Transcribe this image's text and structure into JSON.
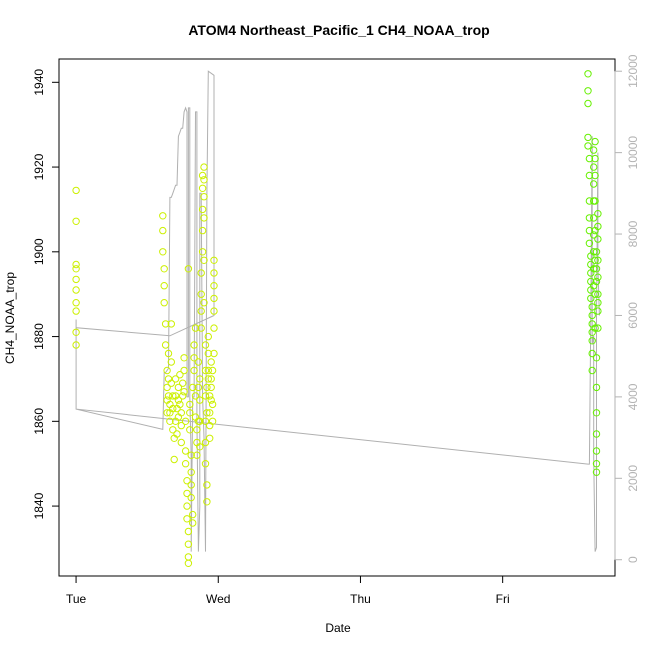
{
  "chart_data": {
    "type": "scatter",
    "title": "ATOM4 Northeast_Pacific_1 CH4_NOAA_trop",
    "xlabel": "Date",
    "ylabel": "CH4_NOAA_trop",
    "x_ticks": [
      "Tue",
      "Wed",
      "Thu",
      "Fri"
    ],
    "x_tick_values": [
      0,
      1,
      2,
      3
    ],
    "xlim": [
      -0.12,
      3.79
    ],
    "ylim": [
      1823.5,
      1945.5
    ],
    "y_ticks": [
      1840,
      1860,
      1880,
      1900,
      1920,
      1940
    ],
    "y2lim": [
      -400,
      12300
    ],
    "y2_ticks": [
      0,
      2000,
      4000,
      6000,
      8000,
      10000,
      12000
    ],
    "grid": false,
    "colors": {
      "ch4_early": "#ccf000",
      "ch4_late": "#66f000",
      "altitude_line": "#b0b0b0"
    },
    "series": [
      {
        "points": [
          [
            0.0,
            1914.5
          ],
          [
            0.0,
            1907.2
          ],
          [
            0.0,
            1897.0
          ],
          [
            0.0,
            1896.0
          ],
          [
            0.0,
            1893.5
          ],
          [
            0.0,
            1891.0
          ],
          [
            0.0,
            1888.0
          ],
          [
            0.0,
            1886.0
          ],
          [
            0.0,
            1881.0
          ],
          [
            0.0,
            1878.0
          ],
          [
            0.61,
            1908.5
          ],
          [
            0.61,
            1905.0
          ],
          [
            0.61,
            1900.0
          ],
          [
            0.62,
            1896.0
          ],
          [
            0.62,
            1892.0
          ],
          [
            0.62,
            1888.0
          ],
          [
            0.63,
            1883.0
          ],
          [
            0.63,
            1878.0
          ],
          [
            0.64,
            1872.0
          ],
          [
            0.64,
            1868.0
          ],
          [
            0.64,
            1865.0
          ],
          [
            0.64,
            1862.0
          ],
          [
            0.65,
            1876.0
          ],
          [
            0.65,
            1870.0
          ],
          [
            0.65,
            1866.0
          ],
          [
            0.66,
            1864.0
          ],
          [
            0.66,
            1862.0
          ],
          [
            0.66,
            1860.0
          ],
          [
            0.67,
            1883.0
          ],
          [
            0.67,
            1874.0
          ],
          [
            0.67,
            1869.0
          ],
          [
            0.68,
            1866.0
          ],
          [
            0.68,
            1863.0
          ],
          [
            0.68,
            1858.0
          ],
          [
            0.69,
            1851.0
          ],
          [
            0.69,
            1856.0
          ],
          [
            0.7,
            1860.0
          ],
          [
            0.7,
            1866.0
          ],
          [
            0.7,
            1870.0
          ],
          [
            0.71,
            1863.0
          ],
          [
            0.71,
            1857.0
          ],
          [
            0.72,
            1861.0
          ],
          [
            0.72,
            1865.0
          ],
          [
            0.72,
            1868.0
          ],
          [
            0.73,
            1871.0
          ],
          [
            0.73,
            1864.0
          ],
          [
            0.74,
            1859.0
          ],
          [
            0.74,
            1855.0
          ],
          [
            0.74,
            1862.0
          ],
          [
            0.75,
            1866.0
          ],
          [
            0.75,
            1869.0
          ],
          [
            0.76,
            1872.0
          ],
          [
            0.76,
            1875.0
          ],
          [
            0.76,
            1867.0
          ],
          [
            0.77,
            1860.0
          ],
          [
            0.77,
            1853.0
          ],
          [
            0.77,
            1850.0
          ],
          [
            0.78,
            1846.0
          ],
          [
            0.78,
            1843.0
          ],
          [
            0.78,
            1840.0
          ],
          [
            0.78,
            1837.0
          ],
          [
            0.79,
            1834.0
          ],
          [
            0.79,
            1831.0
          ],
          [
            0.79,
            1828.0
          ],
          [
            0.79,
            1826.5
          ],
          [
            0.79,
            1896.0
          ],
          [
            0.8,
            1858.0
          ],
          [
            0.8,
            1864.0
          ],
          [
            0.8,
            1862.0
          ],
          [
            0.81,
            1852.0
          ],
          [
            0.81,
            1848.0
          ],
          [
            0.81,
            1845.0
          ],
          [
            0.81,
            1842.0
          ],
          [
            0.82,
            1838.0
          ],
          [
            0.82,
            1836.0
          ],
          [
            0.82,
            1868.0
          ],
          [
            0.83,
            1872.0
          ],
          [
            0.83,
            1875.0
          ],
          [
            0.83,
            1878.0
          ],
          [
            0.84,
            1882.0
          ],
          [
            0.84,
            1866.0
          ],
          [
            0.84,
            1861.0
          ],
          [
            0.85,
            1858.0
          ],
          [
            0.85,
            1855.0
          ],
          [
            0.85,
            1852.0
          ],
          [
            0.86,
            1860.0
          ],
          [
            0.86,
            1868.0
          ],
          [
            0.86,
            1874.0
          ],
          [
            0.87,
            1870.0
          ],
          [
            0.87,
            1865.0
          ],
          [
            0.87,
            1860.0
          ],
          [
            0.87,
            1854.0
          ],
          [
            0.88,
            1882.0
          ],
          [
            0.88,
            1886.0
          ],
          [
            0.88,
            1890.0
          ],
          [
            0.88,
            1895.0
          ],
          [
            0.89,
            1900.0
          ],
          [
            0.89,
            1905.0
          ],
          [
            0.89,
            1910.0
          ],
          [
            0.89,
            1915.0
          ],
          [
            0.89,
            1918.0
          ],
          [
            0.9,
            1920.0
          ],
          [
            0.9,
            1917.0
          ],
          [
            0.9,
            1913.0
          ],
          [
            0.9,
            1908.0
          ],
          [
            0.9,
            1898.0
          ],
          [
            0.9,
            1888.0
          ],
          [
            0.91,
            1878.0
          ],
          [
            0.91,
            1872.0
          ],
          [
            0.91,
            1866.0
          ],
          [
            0.91,
            1860.0
          ],
          [
            0.91,
            1855.0
          ],
          [
            0.91,
            1850.0
          ],
          [
            0.92,
            1845.0
          ],
          [
            0.92,
            1841.0
          ],
          [
            0.92,
            1862.0
          ],
          [
            0.92,
            1868.0
          ],
          [
            0.93,
            1872.0
          ],
          [
            0.93,
            1876.0
          ],
          [
            0.93,
            1880.0
          ],
          [
            0.93,
            1870.0
          ],
          [
            0.94,
            1866.0
          ],
          [
            0.94,
            1862.0
          ],
          [
            0.94,
            1859.0
          ],
          [
            0.94,
            1856.0
          ],
          [
            0.95,
            1865.0
          ],
          [
            0.95,
            1870.0
          ],
          [
            0.95,
            1874.0
          ],
          [
            0.95,
            1868.0
          ],
          [
            0.96,
            1864.0
          ],
          [
            0.96,
            1860.0
          ],
          [
            0.96,
            1872.0
          ],
          [
            0.97,
            1876.0
          ],
          [
            0.97,
            1898.0
          ],
          [
            0.97,
            1895.0
          ],
          [
            0.97,
            1892.0
          ],
          [
            0.97,
            1889.0
          ],
          [
            0.97,
            1886.0
          ],
          [
            0.97,
            1882.0
          ]
        ],
        "color": "#ccf000"
      },
      {
        "points": [
          [
            3.6,
            1942.0
          ],
          [
            3.6,
            1938.0
          ],
          [
            3.6,
            1935.0
          ],
          [
            3.6,
            1927.0
          ],
          [
            3.6,
            1925.0
          ],
          [
            3.61,
            1922.0
          ],
          [
            3.61,
            1918.0
          ],
          [
            3.61,
            1912.0
          ],
          [
            3.61,
            1908.0
          ],
          [
            3.61,
            1905.0
          ],
          [
            3.61,
            1902.0
          ],
          [
            3.62,
            1899.0
          ],
          [
            3.62,
            1897.0
          ],
          [
            3.62,
            1895.0
          ],
          [
            3.62,
            1893.0
          ],
          [
            3.62,
            1891.0
          ],
          [
            3.62,
            1889.0
          ],
          [
            3.63,
            1887.0
          ],
          [
            3.63,
            1885.0
          ],
          [
            3.63,
            1883.0
          ],
          [
            3.63,
            1881.0
          ],
          [
            3.63,
            1879.0
          ],
          [
            3.63,
            1876.0
          ],
          [
            3.63,
            1872.0
          ],
          [
            3.64,
            1892.0
          ],
          [
            3.64,
            1896.0
          ],
          [
            3.64,
            1900.0
          ],
          [
            3.64,
            1904.0
          ],
          [
            3.64,
            1908.0
          ],
          [
            3.64,
            1912.0
          ],
          [
            3.64,
            1916.0
          ],
          [
            3.64,
            1920.0
          ],
          [
            3.64,
            1924.0
          ],
          [
            3.65,
            1926.0
          ],
          [
            3.65,
            1922.0
          ],
          [
            3.65,
            1918.0
          ],
          [
            3.65,
            1912.0
          ],
          [
            3.65,
            1905.0
          ],
          [
            3.65,
            1898.0
          ],
          [
            3.65,
            1890.0
          ],
          [
            3.65,
            1882.0
          ],
          [
            3.66,
            1875.0
          ],
          [
            3.66,
            1868.0
          ],
          [
            3.66,
            1862.0
          ],
          [
            3.66,
            1857.0
          ],
          [
            3.66,
            1853.0
          ],
          [
            3.66,
            1850.0
          ],
          [
            3.66,
            1848.0
          ],
          [
            3.66,
            1900.0
          ],
          [
            3.66,
            1896.0
          ],
          [
            3.66,
            1893.0
          ],
          [
            3.67,
            1890.0
          ],
          [
            3.67,
            1886.0
          ],
          [
            3.67,
            1882.0
          ],
          [
            3.67,
            1903.0
          ],
          [
            3.67,
            1906.0
          ],
          [
            3.67,
            1909.0
          ],
          [
            3.67,
            1898.0
          ],
          [
            3.67,
            1894.0
          ],
          [
            3.67,
            1888.0
          ]
        ],
        "color": "#66f000"
      }
    ],
    "altitude_line": {
      "axis": "right",
      "points": [
        [
          0.0,
          5900
        ],
        [
          0.0,
          3700
        ],
        [
          0.61,
          3200
        ],
        [
          0.62,
          4600
        ],
        [
          0.63,
          4600
        ],
        [
          0.65,
          4700
        ],
        [
          0.66,
          8900
        ],
        [
          0.67,
          8900
        ],
        [
          0.68,
          9000
        ],
        [
          0.69,
          9100
        ],
        [
          0.7,
          9200
        ],
        [
          0.71,
          9200
        ],
        [
          0.72,
          10400
        ],
        [
          0.73,
          10500
        ],
        [
          0.74,
          10600
        ],
        [
          0.75,
          10600
        ],
        [
          0.76,
          11000
        ],
        [
          0.77,
          11100
        ],
        [
          0.78,
          11000
        ],
        [
          0.78,
          4000
        ],
        [
          0.79,
          4000
        ],
        [
          0.79,
          11100
        ],
        [
          0.8,
          11100
        ],
        [
          0.8,
          4000
        ],
        [
          0.81,
          2500
        ],
        [
          0.81,
          200
        ],
        [
          0.82,
          4000
        ],
        [
          0.83,
          4000
        ],
        [
          0.84,
          11000
        ],
        [
          0.85,
          11000
        ],
        [
          0.85,
          3500
        ],
        [
          0.86,
          200
        ],
        [
          0.87,
          1300
        ],
        [
          0.87,
          9000
        ],
        [
          0.88,
          9000
        ],
        [
          0.89,
          4000
        ],
        [
          0.9,
          3000
        ],
        [
          0.91,
          200
        ],
        [
          0.92,
          9000
        ],
        [
          0.93,
          12000
        ],
        [
          0.97,
          11900
        ],
        [
          0.97,
          6000
        ],
        [
          0.66,
          5500
        ],
        [
          0.0,
          5700
        ],
        [
          0.0,
          3700
        ],
        [
          3.6,
          2350
        ],
        [
          3.61,
          2350
        ],
        [
          3.62,
          6000
        ],
        [
          3.63,
          10400
        ],
        [
          3.63,
          5300
        ],
        [
          3.64,
          5500
        ],
        [
          3.64,
          2500
        ],
        [
          3.65,
          200
        ],
        [
          3.66,
          300
        ],
        [
          3.66,
          6000
        ],
        [
          3.67,
          10000
        ],
        [
          3.67,
          7200
        ],
        [
          3.68,
          6000
        ]
      ],
      "color": "#b0b0b0"
    }
  }
}
